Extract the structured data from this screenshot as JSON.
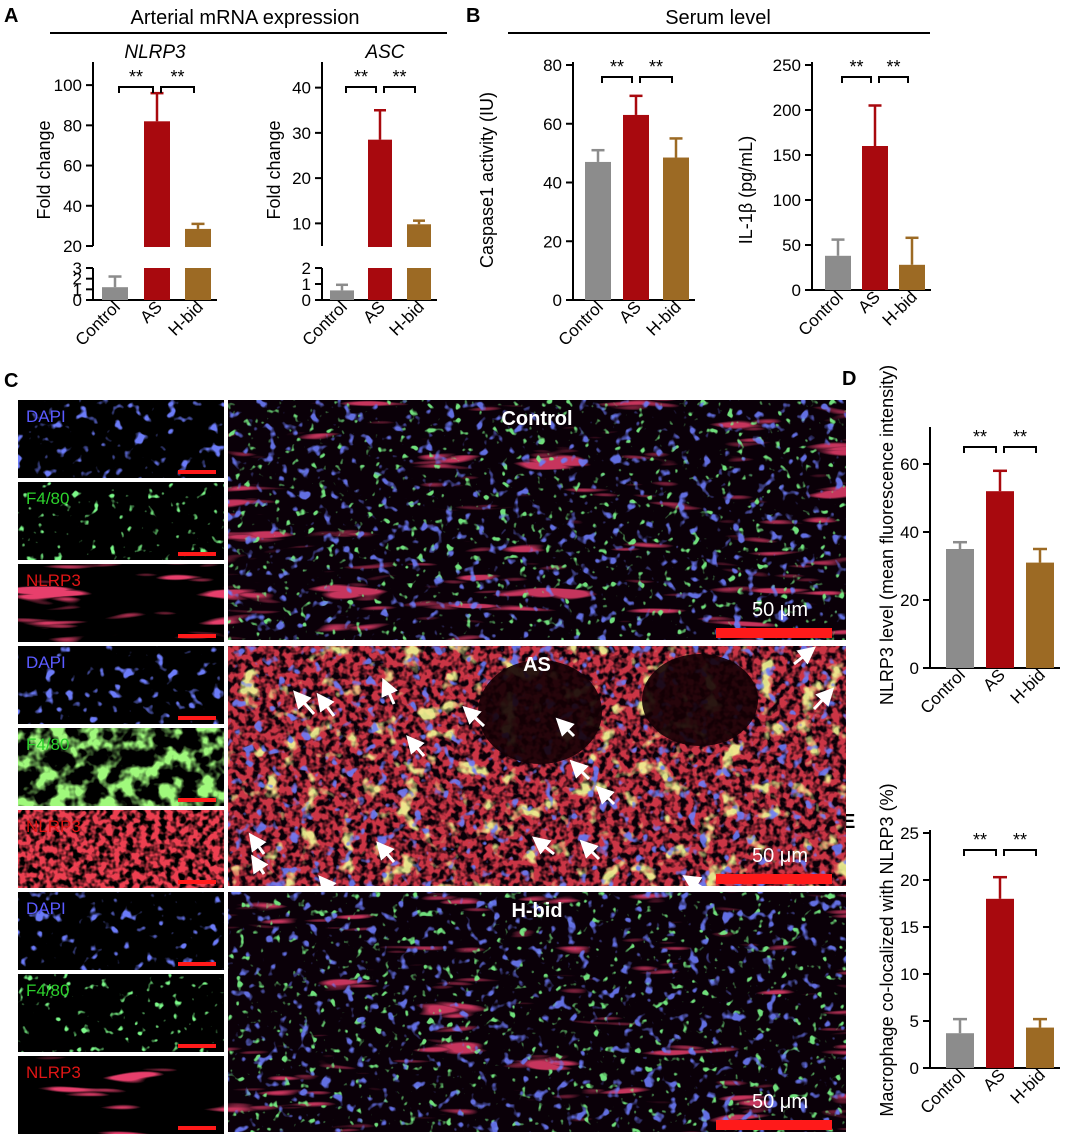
{
  "panel_letters": {
    "a": "A",
    "b": "B",
    "c": "C",
    "d": "D",
    "e": "E"
  },
  "headers": {
    "arterial": "Arterial mRNA expression",
    "serum": "Serum level"
  },
  "colors": {
    "control": "#8c8c8c",
    "as": "#a8090e",
    "hbid": "#9c6a24"
  },
  "chart_data": [
    {
      "type": "bar",
      "panel": "A",
      "title": "NLRP3",
      "categories": [
        "Control",
        "AS",
        "H-bid"
      ],
      "values": [
        1.2,
        82,
        28.5
      ],
      "errors": [
        1.0,
        14,
        2.5
      ],
      "ylabel": "Fold change",
      "axis_break": {
        "lower": [
          0,
          3
        ],
        "upper": [
          20,
          110
        ]
      },
      "lower_ticks": [
        "0",
        "1",
        "2",
        "3"
      ],
      "upper_ticks": [
        "20",
        "40",
        "60",
        "80",
        "100"
      ],
      "significance": [
        "**",
        "**"
      ]
    },
    {
      "type": "bar",
      "panel": "A",
      "title": "ASC",
      "categories": [
        "Control",
        "AS",
        "H-bid"
      ],
      "values": [
        0.6,
        28.5,
        9.8
      ],
      "errors": [
        0.35,
        6.5,
        0.8
      ],
      "ylabel": "Fold change",
      "axis_break": {
        "lower": [
          0,
          2
        ],
        "upper": [
          5,
          45
        ]
      },
      "lower_ticks": [
        "0",
        "1",
        "2"
      ],
      "upper_ticks": [
        "10",
        "20",
        "30",
        "40"
      ],
      "significance": [
        "**",
        "**"
      ]
    },
    {
      "type": "bar",
      "panel": "B",
      "title": "",
      "categories": [
        "Control",
        "AS",
        "H-bid"
      ],
      "values": [
        47,
        63,
        48.5
      ],
      "errors": [
        4,
        6.5,
        6.5
      ],
      "ylabel": "Caspase1 activity (IU)",
      "ylim": [
        0,
        80
      ],
      "ticks": [
        "0",
        "20",
        "40",
        "60",
        "80"
      ],
      "significance": [
        "**",
        "**"
      ]
    },
    {
      "type": "bar",
      "panel": "B",
      "title": "",
      "categories": [
        "Control",
        "AS",
        "H-bid"
      ],
      "values": [
        38,
        160,
        28
      ],
      "errors": [
        18,
        45,
        30
      ],
      "ylabel": "IL-1β (pg/mL)",
      "ylim": [
        0,
        250
      ],
      "ticks": [
        "0",
        "50",
        "100",
        "150",
        "200",
        "250"
      ],
      "significance": [
        "**",
        "**"
      ]
    },
    {
      "type": "bar",
      "panel": "D",
      "title": "",
      "categories": [
        "Control",
        "AS",
        "H-bid"
      ],
      "values": [
        35,
        52,
        31
      ],
      "errors": [
        2,
        6,
        4
      ],
      "ylabel": "NLRP3 level (mean fluorescence intensity)",
      "ylim": [
        0,
        70
      ],
      "ticks": [
        "0",
        "20",
        "40",
        "60"
      ],
      "significance": [
        "**",
        "**"
      ]
    },
    {
      "type": "bar",
      "panel": "E",
      "title": "",
      "categories": [
        "Control",
        "AS",
        "H-bid"
      ],
      "values": [
        3.7,
        18,
        4.3
      ],
      "errors": [
        1.5,
        2.3,
        0.9
      ],
      "ylabel": "Macrophage co-localized with NLRP3 (%)",
      "ylim": [
        0,
        25
      ],
      "ticks": [
        "0",
        "5",
        "10",
        "15",
        "20",
        "25"
      ],
      "significance": [
        "**",
        "**"
      ]
    }
  ],
  "micrographs": {
    "groups": [
      {
        "title": "Control",
        "channels": [
          "DAPI",
          "F4/80",
          "NLRP3"
        ],
        "scale_bar": "50 μm"
      },
      {
        "title": "AS",
        "channels": [
          "DAPI",
          "F4/80",
          "NLRP3"
        ],
        "scale_bar": "50 μm"
      },
      {
        "title": "H-bid",
        "channels": [
          "DAPI",
          "F4/80",
          "NLRP3"
        ],
        "scale_bar": "50 μm"
      }
    ]
  }
}
